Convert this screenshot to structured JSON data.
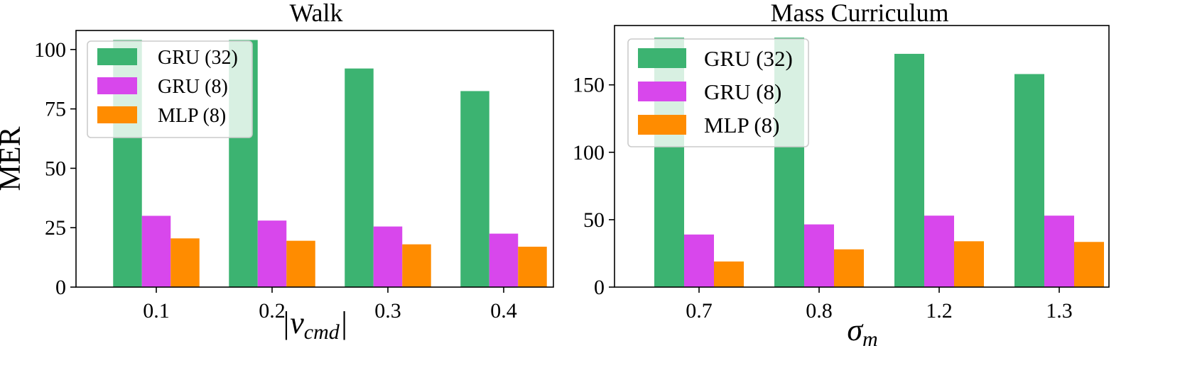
{
  "chart_data": [
    {
      "type": "bar",
      "title": "Walk",
      "xlabel": "|v",
      "xlabel_sub": "cmd",
      "xlabel_suffix": "|",
      "ylabel": "MER",
      "categories": [
        "0.1",
        "0.2",
        "0.3",
        "0.4"
      ],
      "ylim": [
        0,
        108
      ],
      "yticks": [
        0,
        25,
        50,
        75,
        100
      ],
      "series": [
        {
          "name": "GRU (32)",
          "color": "#3cb371",
          "values": [
            104,
            104,
            92,
            82.5
          ]
        },
        {
          "name": "GRU (8)",
          "color": "#d847ec",
          "values": [
            30,
            28,
            25.5,
            22.5
          ]
        },
        {
          "name": "MLP (8)",
          "color": "#ff8c00",
          "values": [
            20.5,
            19.5,
            18,
            17
          ]
        }
      ],
      "legend": "top-left"
    },
    {
      "type": "bar",
      "title": "Mass Curriculum",
      "xlabel": "σ",
      "xlabel_sub": "m",
      "xlabel_suffix": "",
      "ylabel": "",
      "categories": [
        "0.7",
        "0.8",
        "1.2",
        "1.3"
      ],
      "ylim": [
        0,
        194
      ],
      "yticks": [
        0,
        50,
        100,
        150
      ],
      "series": [
        {
          "name": "GRU (32)",
          "color": "#3cb371",
          "values": [
            185,
            185,
            173,
            158
          ]
        },
        {
          "name": "GRU (8)",
          "color": "#d847ec",
          "values": [
            39,
            46.5,
            53,
            53
          ]
        },
        {
          "name": "MLP (8)",
          "color": "#ff8c00",
          "values": [
            19,
            28,
            34,
            33.5
          ]
        }
      ],
      "legend": "top-left"
    }
  ]
}
